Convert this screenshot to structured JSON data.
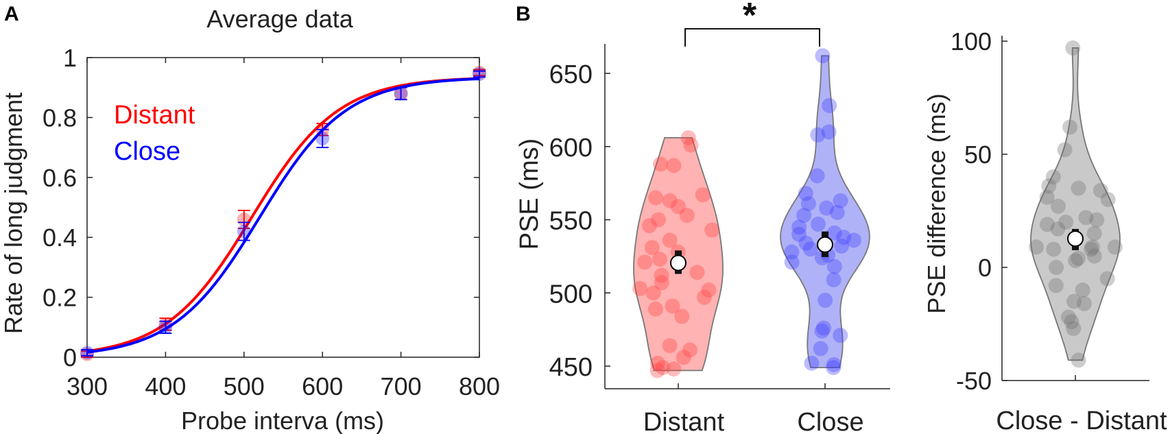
{
  "chart_data": [
    {
      "panel_label": "A",
      "type": "line",
      "title": "Average data",
      "xlabel": "Probe interva (ms)",
      "ylabel": "Rate of long judgment",
      "xlim": [
        300,
        800
      ],
      "ylim": [
        0,
        1
      ],
      "xticks": [
        "300",
        "400",
        "500",
        "600",
        "700",
        "800"
      ],
      "yticks": [
        "0",
        "0.2",
        "0.4",
        "0.6",
        "0.8",
        "1"
      ],
      "legend": {
        "placement": "top-left",
        "entries": [
          "Distant",
          "Close"
        ]
      },
      "x": [
        300,
        400,
        500,
        600,
        700,
        800
      ],
      "series": [
        {
          "name": "Distant",
          "color": "#ff0000",
          "values": [
            0.01,
            0.11,
            0.46,
            0.76,
            0.88,
            0.95
          ],
          "errors": [
            0.01,
            0.02,
            0.03,
            0.02,
            0.02,
            0.01
          ],
          "fit": {
            "mu": 510,
            "sigma": 55,
            "upper": 0.935
          }
        },
        {
          "name": "Close",
          "color": "#0000ff",
          "values": [
            0.015,
            0.1,
            0.42,
            0.73,
            0.88,
            0.945
          ],
          "errors": [
            0.01,
            0.02,
            0.03,
            0.03,
            0.02,
            0.01
          ],
          "fit": {
            "mu": 520,
            "sigma": 55,
            "upper": 0.935
          }
        }
      ]
    },
    {
      "panel_label": "B",
      "type": "scatter",
      "subtype": "violin",
      "ylabel": "PSE (ms)",
      "ylim": [
        435,
        670
      ],
      "yticks": [
        "450",
        "500",
        "550",
        "600",
        "650"
      ],
      "categories": [
        "Distant",
        "Close"
      ],
      "significance": "*",
      "series": [
        {
          "name": "Distant",
          "color": "#ff4040",
          "fill": "#ffb3b3",
          "mean": 520.5,
          "se_low": 513,
          "se_high": 529,
          "values": [
            606,
            601,
            588,
            587,
            567,
            565,
            563,
            559,
            553,
            550,
            546,
            543,
            536,
            531,
            528,
            523,
            521,
            514,
            512,
            507,
            503,
            502,
            500,
            497,
            491,
            489,
            484,
            464,
            461,
            456,
            452,
            449,
            448,
            447
          ]
        },
        {
          "name": "Close",
          "color": "#4040ff",
          "fill": "#b0b2f7",
          "mean": 533,
          "se_low": 524.5,
          "se_high": 542,
          "values": [
            662,
            628,
            610,
            608,
            580,
            568,
            563,
            561,
            558,
            555,
            553,
            547,
            545,
            541,
            540,
            538,
            536,
            534,
            532,
            530,
            528,
            526,
            524,
            521,
            518,
            509,
            495,
            476,
            474,
            471,
            462,
            452,
            451,
            449
          ]
        }
      ]
    },
    {
      "type": "scatter",
      "subtype": "violin",
      "ylabel": "PSE difference (ms)",
      "ylim": [
        -50,
        101
      ],
      "yticks": [
        "-50",
        "0",
        "50",
        "100"
      ],
      "categories": [
        "Close - Distant"
      ],
      "series": [
        {
          "name": "Close - Distant",
          "color": "#707070",
          "fill": "#c9c9c9",
          "mean": 12.7,
          "se_low": 7.6,
          "se_high": 17,
          "values": [
            97,
            62,
            52,
            40,
            36,
            35,
            34,
            31,
            30,
            27,
            22,
            21,
            20,
            19,
            17,
            15,
            9,
            9,
            9,
            8,
            8,
            5,
            4,
            3,
            0,
            -5,
            -8,
            -10,
            -15,
            -16,
            -22,
            -24,
            -27,
            -41
          ]
        }
      ]
    }
  ]
}
